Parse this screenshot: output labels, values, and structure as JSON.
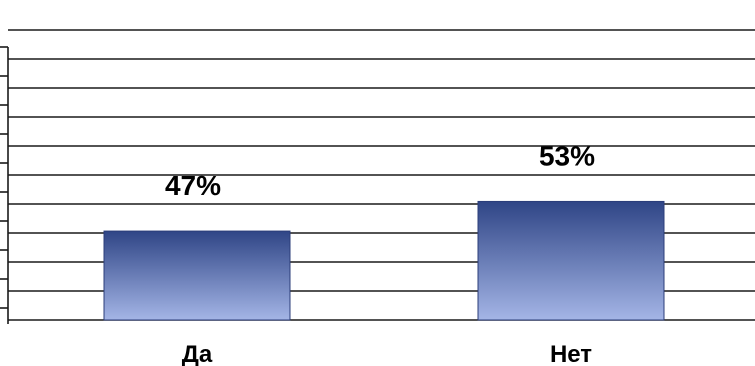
{
  "chart_data": {
    "type": "bar",
    "categories": [
      "Да",
      "Нет"
    ],
    "values": [
      47,
      53
    ],
    "data_labels": [
      "47%",
      "53%"
    ],
    "title": "",
    "xlabel": "",
    "ylabel": "",
    "grid": true,
    "legend": "none",
    "colors": {
      "bar_top": "#2f4586",
      "bar_bottom": "#a4b5e6",
      "grid": "#1a1a1a"
    }
  }
}
